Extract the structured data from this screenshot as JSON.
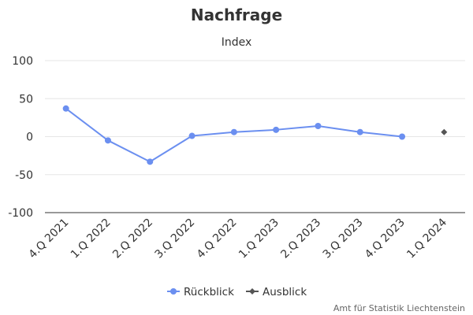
{
  "chart_data": {
    "type": "line",
    "title": "Nachfrage",
    "subtitle": "Index",
    "xlabel": "",
    "ylabel": "",
    "categories": [
      "4.Q 2021",
      "1.Q 2022",
      "2.Q 2022",
      "3.Q 2022",
      "4.Q 2022",
      "1.Q 2023",
      "2.Q 2023",
      "3.Q 2023",
      "4.Q 2023",
      "1.Q 2024"
    ],
    "ylim": [
      -100,
      100
    ],
    "yticks": [
      100,
      50,
      0,
      -50,
      -100
    ],
    "grid": true,
    "legend_position": "bottom-center",
    "series": [
      {
        "name": "Rückblick",
        "color": "#6b8ff0",
        "marker": "circle",
        "line": true,
        "values": [
          37,
          -5,
          -33,
          1,
          6,
          9,
          14,
          6,
          0,
          null
        ]
      },
      {
        "name": "Ausblick",
        "color": "#555555",
        "marker": "diamond",
        "line": false,
        "values": [
          null,
          null,
          null,
          null,
          null,
          null,
          null,
          null,
          null,
          6
        ]
      }
    ],
    "credits": "Amt für Statistik Liechtenstein"
  }
}
